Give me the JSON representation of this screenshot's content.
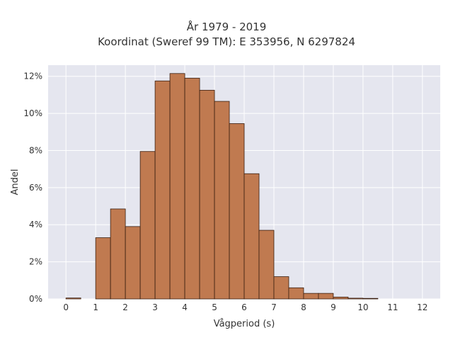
{
  "chart_data": {
    "type": "bar",
    "title_line1": "År 1979 - 2019",
    "title_line2": "Koordinat (Sweref 99 TM): E 353956, N 6297824",
    "xlabel": "Vågperiod (s)",
    "ylabel": "Andel",
    "bin_width": 0.5,
    "bin_starts": [
      0,
      0.5,
      1,
      1.5,
      2,
      2.5,
      3,
      3.5,
      4,
      4.5,
      5,
      5.5,
      6,
      6.5,
      7,
      7.5,
      8,
      8.5,
      9,
      9.5,
      10,
      10.5,
      11,
      11.5
    ],
    "values": [
      0.05,
      0,
      3.3,
      4.85,
      3.9,
      7.95,
      11.75,
      12.15,
      11.9,
      11.25,
      10.65,
      9.45,
      6.75,
      3.7,
      1.2,
      0.6,
      0.3,
      0.3,
      0.1,
      0.04,
      0.03,
      0,
      0,
      0
    ],
    "value_unit": "%",
    "xlim": [
      -0.6,
      12.6
    ],
    "ylim": [
      0,
      12.6
    ],
    "x_ticks": [
      0,
      1,
      2,
      3,
      4,
      5,
      6,
      7,
      8,
      9,
      10,
      11,
      12
    ],
    "x_tick_labels": [
      "0",
      "1",
      "2",
      "3",
      "4",
      "5",
      "6",
      "7",
      "8",
      "9",
      "10",
      "11",
      "12"
    ],
    "y_ticks": [
      0,
      2,
      4,
      6,
      8,
      10,
      12
    ],
    "y_tick_labels": [
      "0%",
      "2%",
      "4%",
      "6%",
      "8%",
      "10%",
      "12%"
    ],
    "grid": true,
    "legend": "none",
    "bar_color": "#c07a50",
    "bar_edge_color": "#3a1f10",
    "plot_background": "#e5e6ef",
    "grid_color": "#ffffff"
  }
}
